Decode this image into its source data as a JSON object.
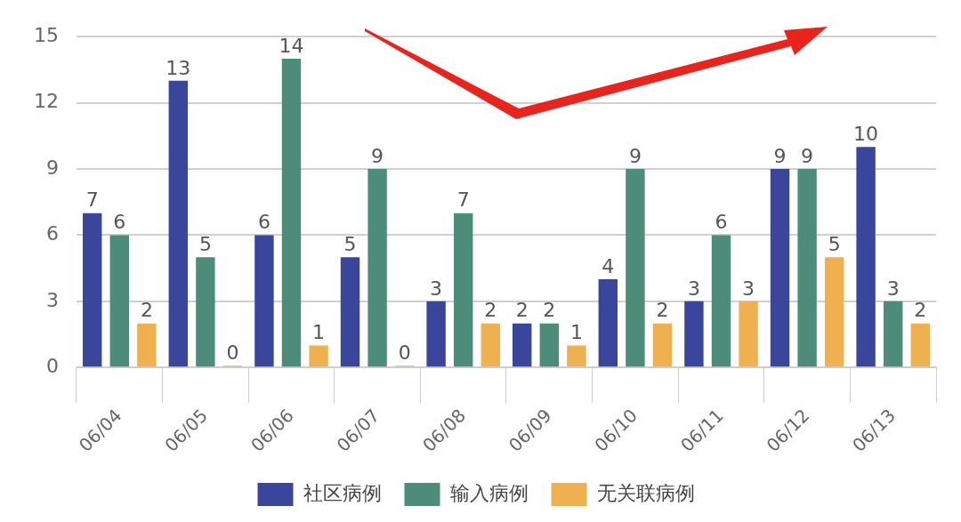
{
  "chart_data": {
    "type": "bar",
    "categories": [
      "06/04",
      "06/05",
      "06/06",
      "06/07",
      "06/08",
      "06/09",
      "06/10",
      "06/11",
      "06/12",
      "06/13"
    ],
    "series": [
      {
        "name": "社区病例",
        "color": "#3a469c",
        "values": [
          7,
          13,
          6,
          5,
          3,
          2,
          4,
          3,
          9,
          10
        ]
      },
      {
        "name": "输入病例",
        "color": "#4e8c7a",
        "values": [
          6,
          5,
          14,
          9,
          7,
          2,
          9,
          6,
          9,
          3
        ]
      },
      {
        "name": "无关联病例",
        "color": "#efb050",
        "values": [
          2,
          0,
          1,
          0,
          2,
          1,
          2,
          3,
          5,
          2
        ]
      }
    ],
    "ylim": [
      0,
      15
    ],
    "yticks": [
      0,
      3,
      6,
      9,
      12,
      15
    ],
    "grid": "y",
    "legend": "bottom",
    "data_labels": true
  }
}
